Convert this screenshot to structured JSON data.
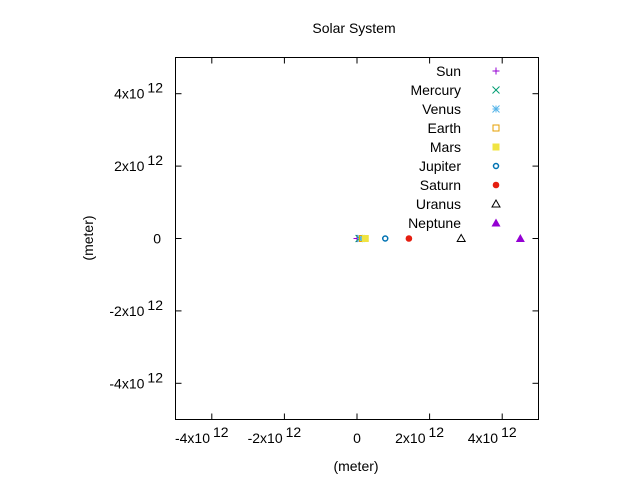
{
  "chart_data": {
    "type": "scatter",
    "title": "Solar System",
    "xlabel": "(meter)",
    "ylabel": "(meter)",
    "xlim": [
      -5000000000000.0,
      5000000000000.0
    ],
    "ylim": [
      -5000000000000.0,
      5000000000000.0
    ],
    "grid": false,
    "legend_placement": "top-right",
    "x_ticks": [
      {
        "value": -4000000000000.0,
        "base": "-4x10",
        "exp": "12"
      },
      {
        "value": -2000000000000.0,
        "base": "-2x10",
        "exp": "12"
      },
      {
        "value": 0,
        "base": "0",
        "exp": ""
      },
      {
        "value": 2000000000000.0,
        "base": "2x10",
        "exp": "12"
      },
      {
        "value": 4000000000000.0,
        "base": "4x10",
        "exp": "12"
      }
    ],
    "y_ticks": [
      {
        "value": 4000000000000.0,
        "base": "4x10",
        "exp": "12"
      },
      {
        "value": 2000000000000.0,
        "base": "2x10",
        "exp": "12"
      },
      {
        "value": 0,
        "base": "0",
        "exp": ""
      },
      {
        "value": -2000000000000.0,
        "base": "-2x10",
        "exp": "12"
      },
      {
        "value": -4000000000000.0,
        "base": "-4x10",
        "exp": "12"
      }
    ],
    "series": [
      {
        "name": "Sun",
        "marker": "plus",
        "color": "#9400d3",
        "x": [
          0
        ],
        "y": [
          0
        ]
      },
      {
        "name": "Mercury",
        "marker": "cross",
        "color": "#009e73",
        "x": [
          58000000000.0
        ],
        "y": [
          0
        ]
      },
      {
        "name": "Venus",
        "marker": "star",
        "color": "#56b4e9",
        "x": [
          108000000000.0
        ],
        "y": [
          0
        ]
      },
      {
        "name": "Earth",
        "marker": "open-square",
        "color": "#e69f00",
        "x": [
          150000000000.0
        ],
        "y": [
          0
        ]
      },
      {
        "name": "Mars",
        "marker": "filled-square",
        "color": "#f0e442",
        "x": [
          228000000000.0
        ],
        "y": [
          0
        ]
      },
      {
        "name": "Jupiter",
        "marker": "open-circle",
        "color": "#0072b2",
        "x": [
          778000000000.0
        ],
        "y": [
          0
        ]
      },
      {
        "name": "Saturn",
        "marker": "filled-circle",
        "color": "#e51e10",
        "x": [
          1430000000000.0
        ],
        "y": [
          0
        ]
      },
      {
        "name": "Uranus",
        "marker": "open-triangle",
        "color": "#000000",
        "x": [
          2870000000000.0
        ],
        "y": [
          0
        ]
      },
      {
        "name": "Neptune",
        "marker": "filled-triangle",
        "color": "#9400d3",
        "x": [
          4500000000000.0
        ],
        "y": [
          0
        ]
      }
    ]
  }
}
